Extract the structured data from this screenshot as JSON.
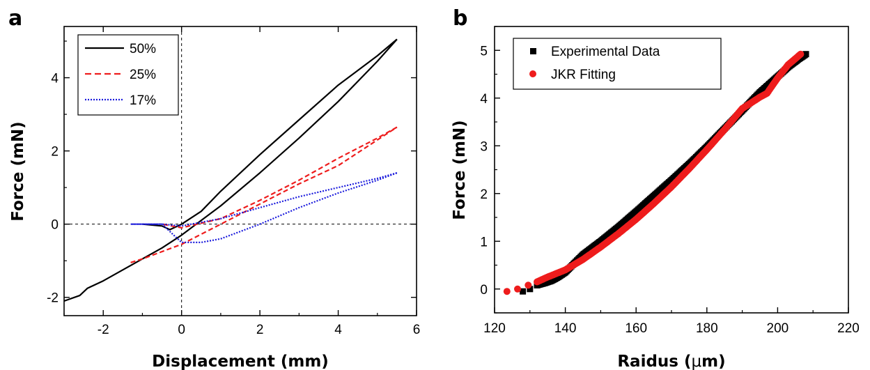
{
  "chart_data": [
    {
      "panel_label": "a",
      "type": "line",
      "xlabel": "Displacement (mm)",
      "ylabel": "Force (mN)",
      "xlim": [
        -3,
        6
      ],
      "ylim": [
        -2.5,
        5.4
      ],
      "xticks": [
        "-2",
        "0",
        "2",
        "4",
        "6"
      ],
      "xtick_values": [
        -2,
        0,
        2,
        4,
        6
      ],
      "yticks": [
        "-2",
        "0",
        "2",
        "4"
      ],
      "ytick_values": [
        -2,
        0,
        2,
        4
      ],
      "reference_lines": {
        "x": 0,
        "y": 0,
        "style": "dashed"
      },
      "legend_position": "top-left",
      "colors": {
        "s50": "#000000",
        "s25": "#ee1c1c",
        "s17": "#1a1adc"
      },
      "series": [
        {
          "name": "50%",
          "style": "solid",
          "loading": [
            [
              -3.0,
              -2.1
            ],
            [
              -2.6,
              -1.95
            ],
            [
              -2.4,
              -1.75
            ],
            [
              -2.0,
              -1.55
            ],
            [
              -1.5,
              -1.25
            ],
            [
              -1.0,
              -0.95
            ],
            [
              -0.5,
              -0.65
            ],
            [
              0.0,
              -0.3
            ],
            [
              0.5,
              0.1
            ],
            [
              1.0,
              0.5
            ],
            [
              2.0,
              1.4
            ],
            [
              3.0,
              2.35
            ],
            [
              4.0,
              3.35
            ],
            [
              5.0,
              4.45
            ],
            [
              5.5,
              5.05
            ]
          ],
          "unloading": [
            [
              5.5,
              5.05
            ],
            [
              5.0,
              4.6
            ],
            [
              4.0,
              3.8
            ],
            [
              3.0,
              2.85
            ],
            [
              2.0,
              1.9
            ],
            [
              1.0,
              0.9
            ],
            [
              0.5,
              0.35
            ],
            [
              0.0,
              0.0
            ],
            [
              -0.3,
              -0.15
            ],
            [
              -0.5,
              -0.05
            ],
            [
              -1.0,
              -0.0
            ]
          ]
        },
        {
          "name": "25%",
          "style": "dashed",
          "loading": [
            [
              -1.3,
              -1.05
            ],
            [
              -1.0,
              -0.95
            ],
            [
              0.0,
              -0.55
            ],
            [
              1.0,
              0.0
            ],
            [
              2.0,
              0.55
            ],
            [
              3.0,
              1.1
            ],
            [
              4.0,
              1.6
            ],
            [
              5.0,
              2.3
            ],
            [
              5.5,
              2.65
            ]
          ],
          "unloading": [
            [
              5.5,
              2.65
            ],
            [
              5.0,
              2.35
            ],
            [
              4.0,
              1.8
            ],
            [
              3.0,
              1.2
            ],
            [
              2.0,
              0.65
            ],
            [
              1.0,
              0.15
            ],
            [
              0.0,
              -0.1
            ],
            [
              -0.5,
              -0.0
            ]
          ]
        },
        {
          "name": "17%",
          "style": "dotted",
          "loading": [
            [
              -1.3,
              0.0
            ],
            [
              -0.5,
              0.0
            ],
            [
              -0.2,
              -0.3
            ],
            [
              0.0,
              -0.5
            ],
            [
              0.5,
              -0.5
            ],
            [
              1.0,
              -0.4
            ],
            [
              2.0,
              0.0
            ],
            [
              3.0,
              0.45
            ],
            [
              4.0,
              0.85
            ],
            [
              5.0,
              1.2
            ],
            [
              5.5,
              1.4
            ]
          ],
          "unloading": [
            [
              5.5,
              1.4
            ],
            [
              5.0,
              1.25
            ],
            [
              4.0,
              1.0
            ],
            [
              3.0,
              0.75
            ],
            [
              2.0,
              0.45
            ],
            [
              1.0,
              0.15
            ],
            [
              0.0,
              -0.05
            ],
            [
              -0.5,
              0.0
            ],
            [
              -1.3,
              0.0
            ]
          ]
        }
      ]
    },
    {
      "panel_label": "b",
      "type": "scatter",
      "xlabel_prefix": "Raidus (",
      "xlabel_mu": "μ",
      "xlabel_suffix": "m)",
      "ylabel": "Force (mN)",
      "xlim": [
        120,
        220
      ],
      "ylim": [
        -0.5,
        5.5
      ],
      "xticks": [
        "120",
        "140",
        "160",
        "180",
        "200",
        "220"
      ],
      "xtick_values": [
        120,
        140,
        160,
        180,
        200,
        220
      ],
      "yticks": [
        "0",
        "1",
        "2",
        "3",
        "4",
        "5"
      ],
      "ytick_values": [
        0,
        1,
        2,
        3,
        4,
        5
      ],
      "legend_position": "top-left",
      "colors": {
        "experimental": "#000000",
        "jkr": "#ee1c1c"
      },
      "series": [
        {
          "name": "Experimental Data",
          "marker": "square",
          "points": [
            [
              128,
              -0.05
            ],
            [
              130,
              0.0
            ],
            [
              132,
              0.08
            ],
            [
              134,
              0.12
            ],
            [
              136,
              0.17
            ],
            [
              138,
              0.25
            ],
            [
              140,
              0.35
            ],
            [
              142,
              0.5
            ],
            [
              145,
              0.72
            ],
            [
              150,
              1.0
            ],
            [
              155,
              1.3
            ],
            [
              160,
              1.62
            ],
            [
              165,
              1.95
            ],
            [
              170,
              2.28
            ],
            [
              175,
              2.62
            ],
            [
              180,
              2.98
            ],
            [
              185,
              3.36
            ],
            [
              190,
              3.74
            ],
            [
              195,
              4.12
            ],
            [
              200,
              4.45
            ],
            [
              203,
              4.65
            ],
            [
              206,
              4.82
            ],
            [
              208,
              4.92
            ]
          ]
        },
        {
          "name": "JKR Fitting",
          "marker": "circle",
          "points": [
            [
              123.5,
              -0.05
            ],
            [
              126.5,
              0.0
            ],
            [
              129.5,
              0.08
            ],
            [
              132,
              0.15
            ],
            [
              135,
              0.25
            ],
            [
              140,
              0.4
            ],
            [
              145,
              0.62
            ],
            [
              150,
              0.88
            ],
            [
              155,
              1.16
            ],
            [
              160,
              1.46
            ],
            [
              165,
              1.79
            ],
            [
              170,
              2.14
            ],
            [
              175,
              2.52
            ],
            [
              180,
              2.92
            ],
            [
              185,
              3.34
            ],
            [
              190,
              3.78
            ],
            [
              195,
              4.02
            ],
            [
              197,
              4.1
            ],
            [
              200,
              4.42
            ],
            [
              203,
              4.7
            ],
            [
              206.5,
              4.92
            ]
          ]
        }
      ]
    }
  ]
}
